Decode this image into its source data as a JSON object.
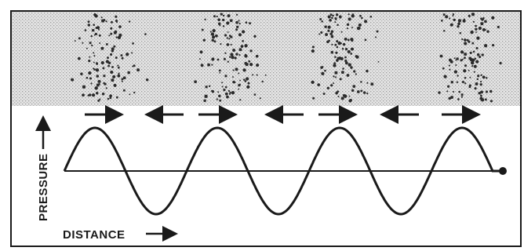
{
  "labels": {
    "y_axis": "PRESSURE",
    "x_axis": "DISTANCE"
  },
  "colors": {
    "ink": "#1a1a1a",
    "paper": "#ffffff",
    "shade": "#d8d8d8",
    "shade_dot": "#9a9a9a",
    "particle": "#2b2b2b"
  },
  "wave": {
    "cycles": 3.5,
    "start_phase": "zero-rising",
    "end_marker": "dot"
  },
  "compression_zones": {
    "count": 4,
    "description_visible": false
  },
  "motion_arrows": [
    "right",
    "left",
    "right",
    "left",
    "right",
    "left",
    "right"
  ]
}
